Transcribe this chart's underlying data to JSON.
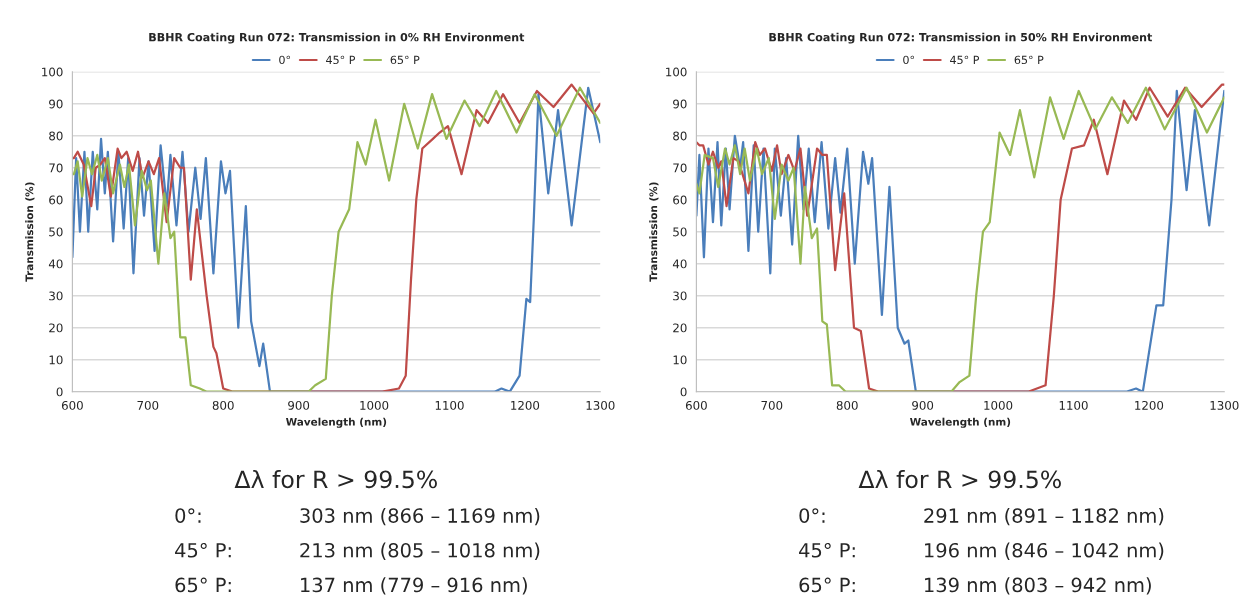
{
  "chart_data": [
    {
      "type": "line",
      "title": "BBHR Coating Run 072: Transmission in 0% RH Environment",
      "xlabel": "Wavelength (nm)",
      "ylabel": "Transmission (%)",
      "xlim": [
        600,
        1300
      ],
      "xticks": [
        600,
        700,
        800,
        900,
        1000,
        1100,
        1200,
        1300
      ],
      "ylim": [
        0,
        100
      ],
      "yticks": [
        0,
        10,
        20,
        30,
        40,
        50,
        60,
        70,
        80,
        90,
        100
      ],
      "grid": "y",
      "legend": "top",
      "marker": "none",
      "line_style": "solid",
      "series": [
        {
          "name": "0°",
          "color": "#4a7ebb",
          "x": [
            600,
            605,
            610,
            616,
            621,
            627,
            633,
            638,
            643,
            647,
            654,
            661,
            668,
            674,
            681,
            689,
            695,
            701,
            709,
            717,
            725,
            730,
            738,
            746,
            754,
            763,
            770,
            777,
            787,
            797,
            803,
            809,
            820,
            830,
            837,
            848,
            853,
            862,
            900,
            1000,
            1100,
            1160,
            1169,
            1180,
            1193,
            1202,
            1207,
            1212,
            1218,
            1231,
            1244,
            1262,
            1284,
            1300
          ],
          "values": [
            42,
            73,
            50,
            75,
            50,
            75,
            57,
            79,
            62,
            75,
            47,
            75,
            51,
            73,
            37,
            73,
            55,
            72,
            44,
            77,
            58,
            74,
            52,
            75,
            50,
            70,
            54,
            73,
            37,
            72,
            62,
            69,
            20,
            58,
            22,
            8,
            15,
            0,
            0,
            0,
            0,
            0,
            1,
            0,
            5,
            29,
            28,
            55,
            93,
            62,
            88,
            52,
            95,
            78
          ]
        },
        {
          "name": "45° P",
          "color": "#be4b48",
          "x": [
            600,
            602,
            607,
            615,
            625,
            631,
            637,
            643,
            651,
            660,
            665,
            672,
            680,
            687,
            693,
            701,
            708,
            715,
            725,
            735,
            743,
            748,
            757,
            765,
            778,
            787,
            791,
            800,
            813,
            900,
            1011,
            1033,
            1042,
            1049,
            1056,
            1064,
            1078,
            1087,
            1098,
            1116,
            1136,
            1151,
            1171,
            1193,
            1216,
            1238,
            1262,
            1291,
            1300
          ],
          "values": [
            73,
            73,
            75,
            71,
            58,
            70,
            71,
            73,
            61,
            76,
            73,
            75,
            69,
            75,
            67,
            72,
            68,
            73,
            53,
            73,
            70,
            70,
            35,
            57,
            30,
            14,
            12,
            1,
            0,
            0,
            0,
            1,
            5,
            35,
            60,
            76,
            79,
            81,
            83,
            68,
            88,
            84,
            93,
            84,
            94,
            89,
            96,
            87,
            90
          ]
        },
        {
          "name": "65° P",
          "color": "#98b954",
          "x": [
            600,
            602,
            607,
            613,
            620,
            626,
            633,
            639,
            647,
            654,
            663,
            669,
            675,
            683,
            692,
            699,
            704,
            714,
            722,
            730,
            735,
            743,
            750,
            757,
            769,
            778,
            850,
            913,
            922,
            936,
            944,
            953,
            967,
            978,
            989,
            1002,
            1020,
            1040,
            1058,
            1077,
            1096,
            1120,
            1140,
            1162,
            1189,
            1213,
            1242,
            1273,
            1300
          ],
          "values": [
            68,
            68,
            72,
            61,
            73,
            68,
            74,
            66,
            73,
            62,
            71,
            64,
            71,
            52,
            69,
            63,
            66,
            40,
            62,
            48,
            50,
            17,
            17,
            2,
            1,
            0,
            0,
            0,
            2,
            4,
            30,
            50,
            57,
            78,
            71,
            85,
            66,
            90,
            76,
            93,
            79,
            91,
            83,
            94,
            81,
            93,
            80,
            95,
            84
          ]
        }
      ],
      "annotations": [
        "Δλ for R > 99.5%",
        "0°:",
        "303 nm (866 – 1169 nm)",
        "45° P:",
        "213 nm (805 – 1018 nm)",
        "65° P:",
        "137 nm (779 – 916 nm)"
      ]
    },
    {
      "type": "line",
      "title": "BBHR Coating Run 072: Transmission in 50% RH Environment",
      "xlabel": "Wavelength (nm)",
      "ylabel": "Transmission (%)",
      "xlim": [
        600,
        1300
      ],
      "xticks": [
        600,
        700,
        800,
        900,
        1000,
        1100,
        1200,
        1300
      ],
      "ylim": [
        0,
        100
      ],
      "yticks": [
        0,
        10,
        20,
        30,
        40,
        50,
        60,
        70,
        80,
        90,
        100
      ],
      "grid": "y",
      "legend": "top",
      "marker": "none",
      "line_style": "solid",
      "series": [
        {
          "name": "0°",
          "color": "#4a7ebb",
          "x": [
            600,
            604,
            610,
            616,
            622,
            628,
            633,
            639,
            644,
            651,
            658,
            662,
            669,
            676,
            682,
            689,
            698,
            704,
            712,
            719,
            727,
            735,
            742,
            749,
            757,
            766,
            775,
            784,
            791,
            800,
            810,
            821,
            828,
            833,
            846,
            856,
            867,
            876,
            881,
            891,
            1000,
            1100,
            1170,
            1183,
            1192,
            1210,
            1219,
            1230,
            1237,
            1250,
            1261,
            1280,
            1300
          ],
          "values": [
            55,
            74,
            42,
            76,
            53,
            78,
            52,
            76,
            57,
            80,
            70,
            78,
            44,
            77,
            50,
            76,
            37,
            76,
            55,
            73,
            46,
            80,
            57,
            76,
            53,
            78,
            51,
            73,
            56,
            76,
            40,
            75,
            65,
            73,
            24,
            64,
            20,
            15,
            16,
            0,
            0,
            0,
            0,
            1,
            0,
            27,
            27,
            60,
            94,
            63,
            88,
            52,
            94
          ]
        },
        {
          "name": "45° P",
          "color": "#be4b48",
          "x": [
            600,
            604,
            609,
            616,
            622,
            629,
            633,
            640,
            649,
            656,
            669,
            678,
            684,
            691,
            700,
            707,
            713,
            722,
            730,
            738,
            747,
            760,
            767,
            773,
            784,
            796,
            809,
            818,
            829,
            842,
            950,
            1040,
            1063,
            1074,
            1083,
            1098,
            1114,
            1127,
            1145,
            1167,
            1183,
            1201,
            1225,
            1248,
            1270,
            1297,
            1300
          ],
          "values": [
            78,
            77,
            77,
            71,
            75,
            70,
            72,
            58,
            73,
            72,
            62,
            78,
            74,
            76,
            69,
            77,
            68,
            74,
            69,
            76,
            55,
            76,
            74,
            74,
            38,
            62,
            20,
            19,
            1,
            0,
            0,
            0,
            2,
            30,
            60,
            76,
            77,
            85,
            68,
            91,
            85,
            95,
            86,
            95,
            89,
            96,
            96
          ]
        },
        {
          "name": "65° P",
          "color": "#98b954",
          "x": [
            600,
            604,
            611,
            622,
            629,
            638,
            644,
            651,
            658,
            664,
            671,
            680,
            687,
            696,
            704,
            713,
            722,
            729,
            738,
            744,
            753,
            760,
            767,
            773,
            780,
            789,
            798,
            870,
            938,
            949,
            962,
            971,
            980,
            989,
            1002,
            1016,
            1029,
            1048,
            1069,
            1087,
            1107,
            1129,
            1151,
            1172,
            1196,
            1221,
            1250,
            1277,
            1300
          ],
          "values": [
            65,
            62,
            74,
            73,
            64,
            76,
            71,
            77,
            68,
            76,
            66,
            76,
            68,
            73,
            54,
            71,
            66,
            70,
            40,
            64,
            48,
            51,
            22,
            21,
            2,
            2,
            0,
            0,
            0,
            3,
            5,
            30,
            50,
            53,
            81,
            74,
            88,
            67,
            92,
            79,
            94,
            82,
            92,
            84,
            95,
            82,
            95,
            81,
            92
          ]
        }
      ],
      "annotations": [
        "Δλ for R > 99.5%",
        "0°:",
        "291 nm (891 – 1182 nm)",
        "45° P:",
        "196 nm (846 – 1042 nm)",
        "65° P:",
        "139 nm (803 – 942 nm)"
      ]
    }
  ]
}
